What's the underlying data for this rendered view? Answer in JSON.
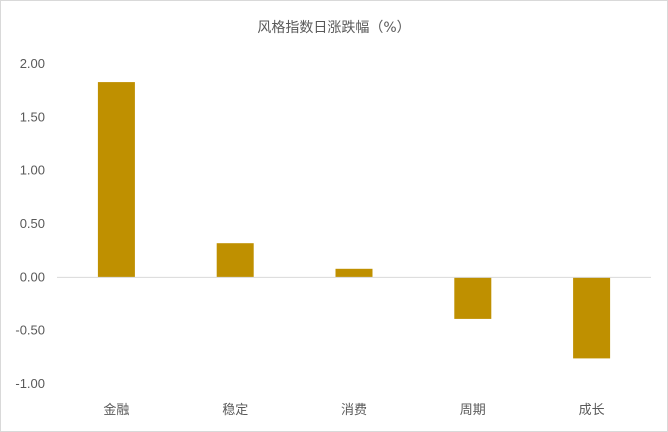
{
  "chart_data": {
    "type": "bar",
    "title": "风格指数日涨跌幅（%）",
    "categories": [
      "金融",
      "稳定",
      "消费",
      "周期",
      "成长"
    ],
    "values": [
      1.83,
      0.32,
      0.08,
      -0.39,
      -0.76
    ],
    "yticks": [
      "2.00",
      "1.50",
      "1.00",
      "0.50",
      "0.00",
      "-0.50",
      "-1.00"
    ],
    "ylim": [
      -1.0,
      2.0
    ],
    "grid": false,
    "bar_color": "#BF9000",
    "axis_color": "#d9d9d9"
  }
}
